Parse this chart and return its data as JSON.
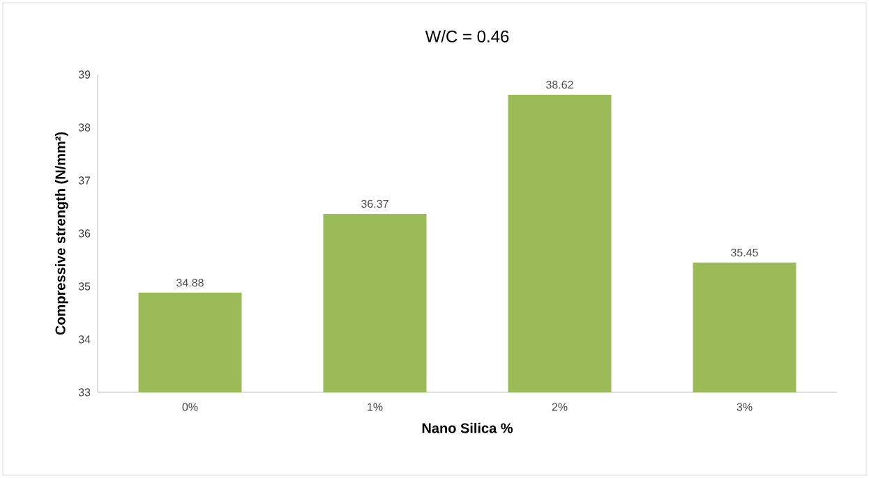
{
  "chart_data": {
    "type": "bar",
    "title": "W/C = 0.46",
    "xlabel": "Nano Silica %",
    "ylabel": "Compressive strength (N/mm²)",
    "categories": [
      "0%",
      "1%",
      "2%",
      "3%"
    ],
    "values": [
      34.88,
      36.37,
      38.62,
      35.45
    ],
    "color": "#9bbb59",
    "ylim": [
      33,
      39
    ],
    "yticks": [
      33,
      34,
      35,
      36,
      37,
      38,
      39
    ],
    "data_labels": true
  }
}
